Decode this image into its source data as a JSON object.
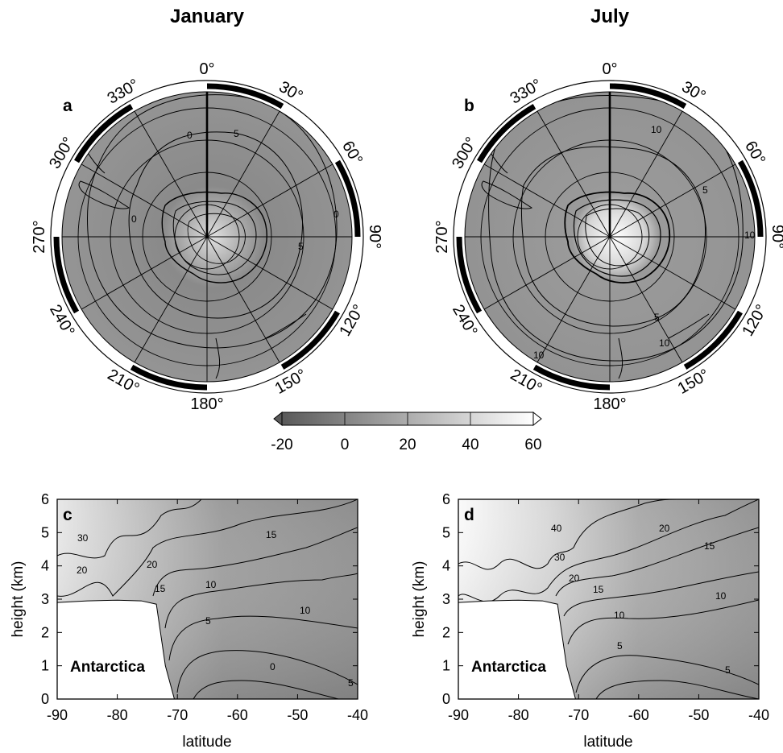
{
  "titles": {
    "january": "January",
    "july": "July"
  },
  "panel_letters": {
    "a": "a",
    "b": "b",
    "c": "c",
    "d": "d"
  },
  "longitude_labels": [
    "0°",
    "30°",
    "60°",
    "90°",
    "120°",
    "150°",
    "180°",
    "210°",
    "240°",
    "270°",
    "300°",
    "330°"
  ],
  "colorbar": {
    "ticks": [
      "-20",
      "0",
      "20",
      "40",
      "60"
    ],
    "range": [
      -20,
      60
    ]
  },
  "region_label": "Antarctica",
  "colors": {
    "field_base": "#8f8f8f",
    "high": "#ffffff",
    "low": "#555555",
    "line": "#000000"
  },
  "chart_data": [
    {
      "type": "heatmap",
      "projection": "south-polar-stereographic",
      "title": "January",
      "panel": "a",
      "contour_labels": [
        "0",
        "5",
        "0",
        "5",
        "0"
      ],
      "longitude_ticks": [
        0,
        30,
        60,
        90,
        120,
        150,
        180,
        210,
        240,
        270,
        300,
        330
      ],
      "colorbar_range": [
        -20,
        60
      ]
    },
    {
      "type": "heatmap",
      "projection": "south-polar-stereographic",
      "title": "July",
      "panel": "b",
      "contour_labels": [
        "10",
        "5",
        "10",
        "5",
        "10",
        "10"
      ],
      "longitude_ticks": [
        0,
        30,
        60,
        90,
        120,
        150,
        180,
        210,
        240,
        270,
        300,
        330
      ],
      "colorbar_range": [
        -20,
        60
      ]
    },
    {
      "type": "heatmap",
      "panel": "c",
      "xlabel": "latitude",
      "ylabel": "height (km)",
      "xlim": [
        -90,
        -40
      ],
      "ylim": [
        0,
        6
      ],
      "x_ticks": [
        -90,
        -80,
        -70,
        -60,
        -50,
        -40
      ],
      "y_ticks": [
        0,
        1,
        2,
        3,
        4,
        5,
        6
      ],
      "contour_labels": [
        "30",
        "20",
        "20",
        "15",
        "15",
        "10",
        "10",
        "5",
        "0",
        "5"
      ],
      "terrain_profile": [
        [
          -90,
          2.9
        ],
        [
          -85,
          2.95
        ],
        [
          -80,
          2.97
        ],
        [
          -76,
          2.95
        ],
        [
          -73.5,
          2.85
        ],
        [
          -72,
          1.0
        ],
        [
          -70.5,
          0
        ]
      ]
    },
    {
      "type": "heatmap",
      "panel": "d",
      "xlabel": "latitude",
      "ylabel": "height (km)",
      "xlim": [
        -90,
        -40
      ],
      "ylim": [
        0,
        6
      ],
      "x_ticks": [
        -90,
        -80,
        -70,
        -60,
        -50,
        -40
      ],
      "y_ticks": [
        0,
        1,
        2,
        3,
        4,
        5,
        6
      ],
      "contour_labels": [
        "40",
        "30",
        "20",
        "15",
        "10",
        "5",
        "20",
        "15",
        "10",
        "5"
      ],
      "terrain_profile": [
        [
          -90,
          2.9
        ],
        [
          -85,
          2.95
        ],
        [
          -80,
          2.97
        ],
        [
          -76,
          2.95
        ],
        [
          -73.5,
          2.85
        ],
        [
          -72,
          1.0
        ],
        [
          -70.5,
          0
        ]
      ]
    }
  ]
}
